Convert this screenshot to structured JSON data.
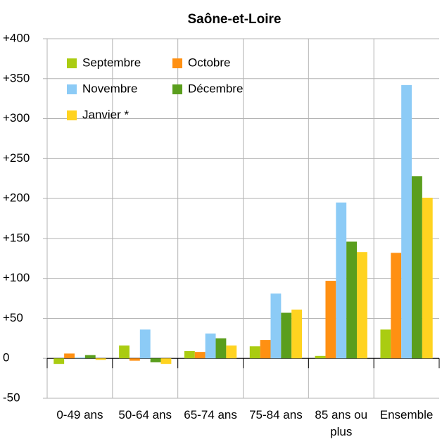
{
  "chart_data": {
    "type": "bar",
    "title": "Saône-et-Loire",
    "categories": [
      "0-49 ans",
      "50-64 ans",
      "65-74 ans",
      "75-84 ans",
      "85 ans ou plus",
      "Ensemble"
    ],
    "series": [
      {
        "name": "Septembre",
        "color": "#aacc11",
        "values": [
          -7,
          16,
          9,
          15,
          3,
          36
        ]
      },
      {
        "name": "Octobre",
        "color": "#ff9012",
        "values": [
          6,
          -3,
          8,
          23,
          97,
          132
        ]
      },
      {
        "name": "Novembre",
        "color": "#8ccbf6",
        "values": [
          1,
          36,
          31,
          81,
          195,
          342
        ]
      },
      {
        "name": "Décembre",
        "color": "#5a9e1d",
        "values": [
          4,
          -5,
          25,
          57,
          146,
          228
        ]
      },
      {
        "name": "Janvier *",
        "color": "#ffd320",
        "values": [
          -2,
          -7,
          16,
          61,
          133,
          201
        ]
      }
    ],
    "ylim": [
      -50,
      400
    ],
    "yticks": [
      -50,
      0,
      {
        "value": 50,
        "label": "+50"
      },
      {
        "value": 100,
        "label": "+100"
      },
      {
        "value": 150,
        "label": "+150"
      },
      {
        "value": 200,
        "label": "+200"
      },
      {
        "value": 250,
        "label": "+250"
      },
      {
        "value": 300,
        "label": "+300"
      },
      {
        "value": 350,
        "label": "+350"
      },
      {
        "value": 400,
        "label": "+400"
      }
    ],
    "grid": true,
    "legend": "upper left"
  }
}
